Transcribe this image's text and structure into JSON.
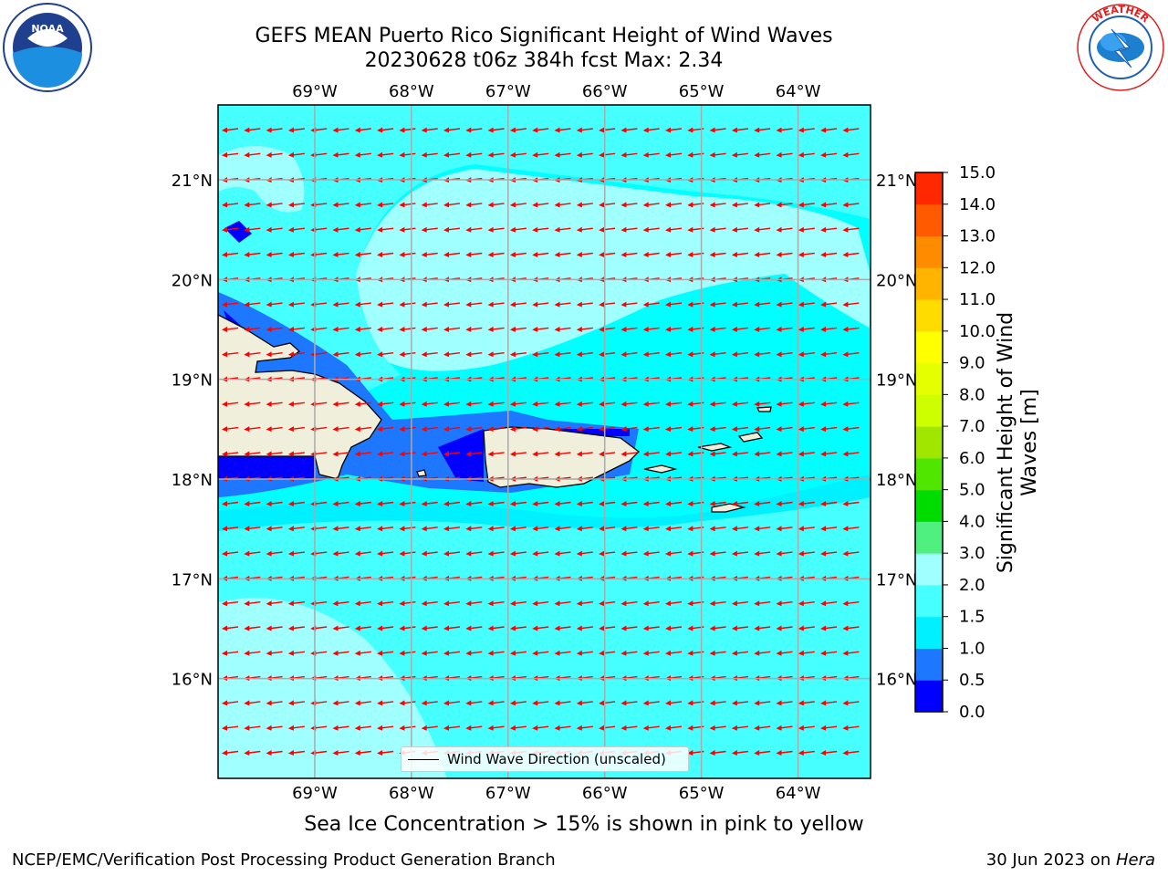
{
  "title_line1": "GEFS MEAN Puerto Rico Significant Height of Wind Waves",
  "title_line2": "20230628 t06z 384h fcst   Max: 2.34",
  "subtitle": "Sea Ice Concentration > 15% is shown in pink to yellow",
  "footer_left": "NCEP/EMC/Verification Post Processing Product Generation Branch",
  "footer_right_date": "30 Jun 2023 on ",
  "footer_right_host": "Hera",
  "logos": {
    "left": "noaa-logo",
    "right": "nws-logo"
  },
  "legend": {
    "label": "Wind Wave Direction (unscaled)"
  },
  "colorbar": {
    "label": "Significant Height of Wind Waves [m]",
    "ticks": [
      "0.0",
      "0.5",
      "1.0",
      "1.5",
      "2.0",
      "3.0",
      "4.0",
      "5.0",
      "6.0",
      "7.0",
      "8.0",
      "9.0",
      "10.0",
      "11.0",
      "12.0",
      "13.0",
      "14.0",
      "15.0"
    ],
    "colors": [
      "#0000ff",
      "#1e78ff",
      "#00f0ff",
      "#46ffff",
      "#a0ffff",
      "#50f080",
      "#00dc00",
      "#50e600",
      "#a0e600",
      "#cdff00",
      "#e6ff00",
      "#ffff00",
      "#ffdc00",
      "#ffb400",
      "#ff8c00",
      "#ff5a00",
      "#ff2800"
    ]
  },
  "map": {
    "lon_ticks": [
      "69°W",
      "68°W",
      "67°W",
      "66°W",
      "65°W",
      "64°W"
    ],
    "lat_ticks": [
      "21°N",
      "20°N",
      "19°N",
      "18°N",
      "17°N",
      "16°N"
    ],
    "lon_values": [
      -69,
      -68,
      -67,
      -66,
      -65,
      -64
    ],
    "lat_values": [
      21,
      20,
      19,
      18,
      17,
      16
    ],
    "extent": {
      "lon_min": -70,
      "lon_max": -63.25,
      "lat_min": 15.0,
      "lat_max": 21.75
    },
    "background_color": "#00ffff",
    "arrow_color": "#ff0000",
    "land_color": "#efefdc"
  }
}
